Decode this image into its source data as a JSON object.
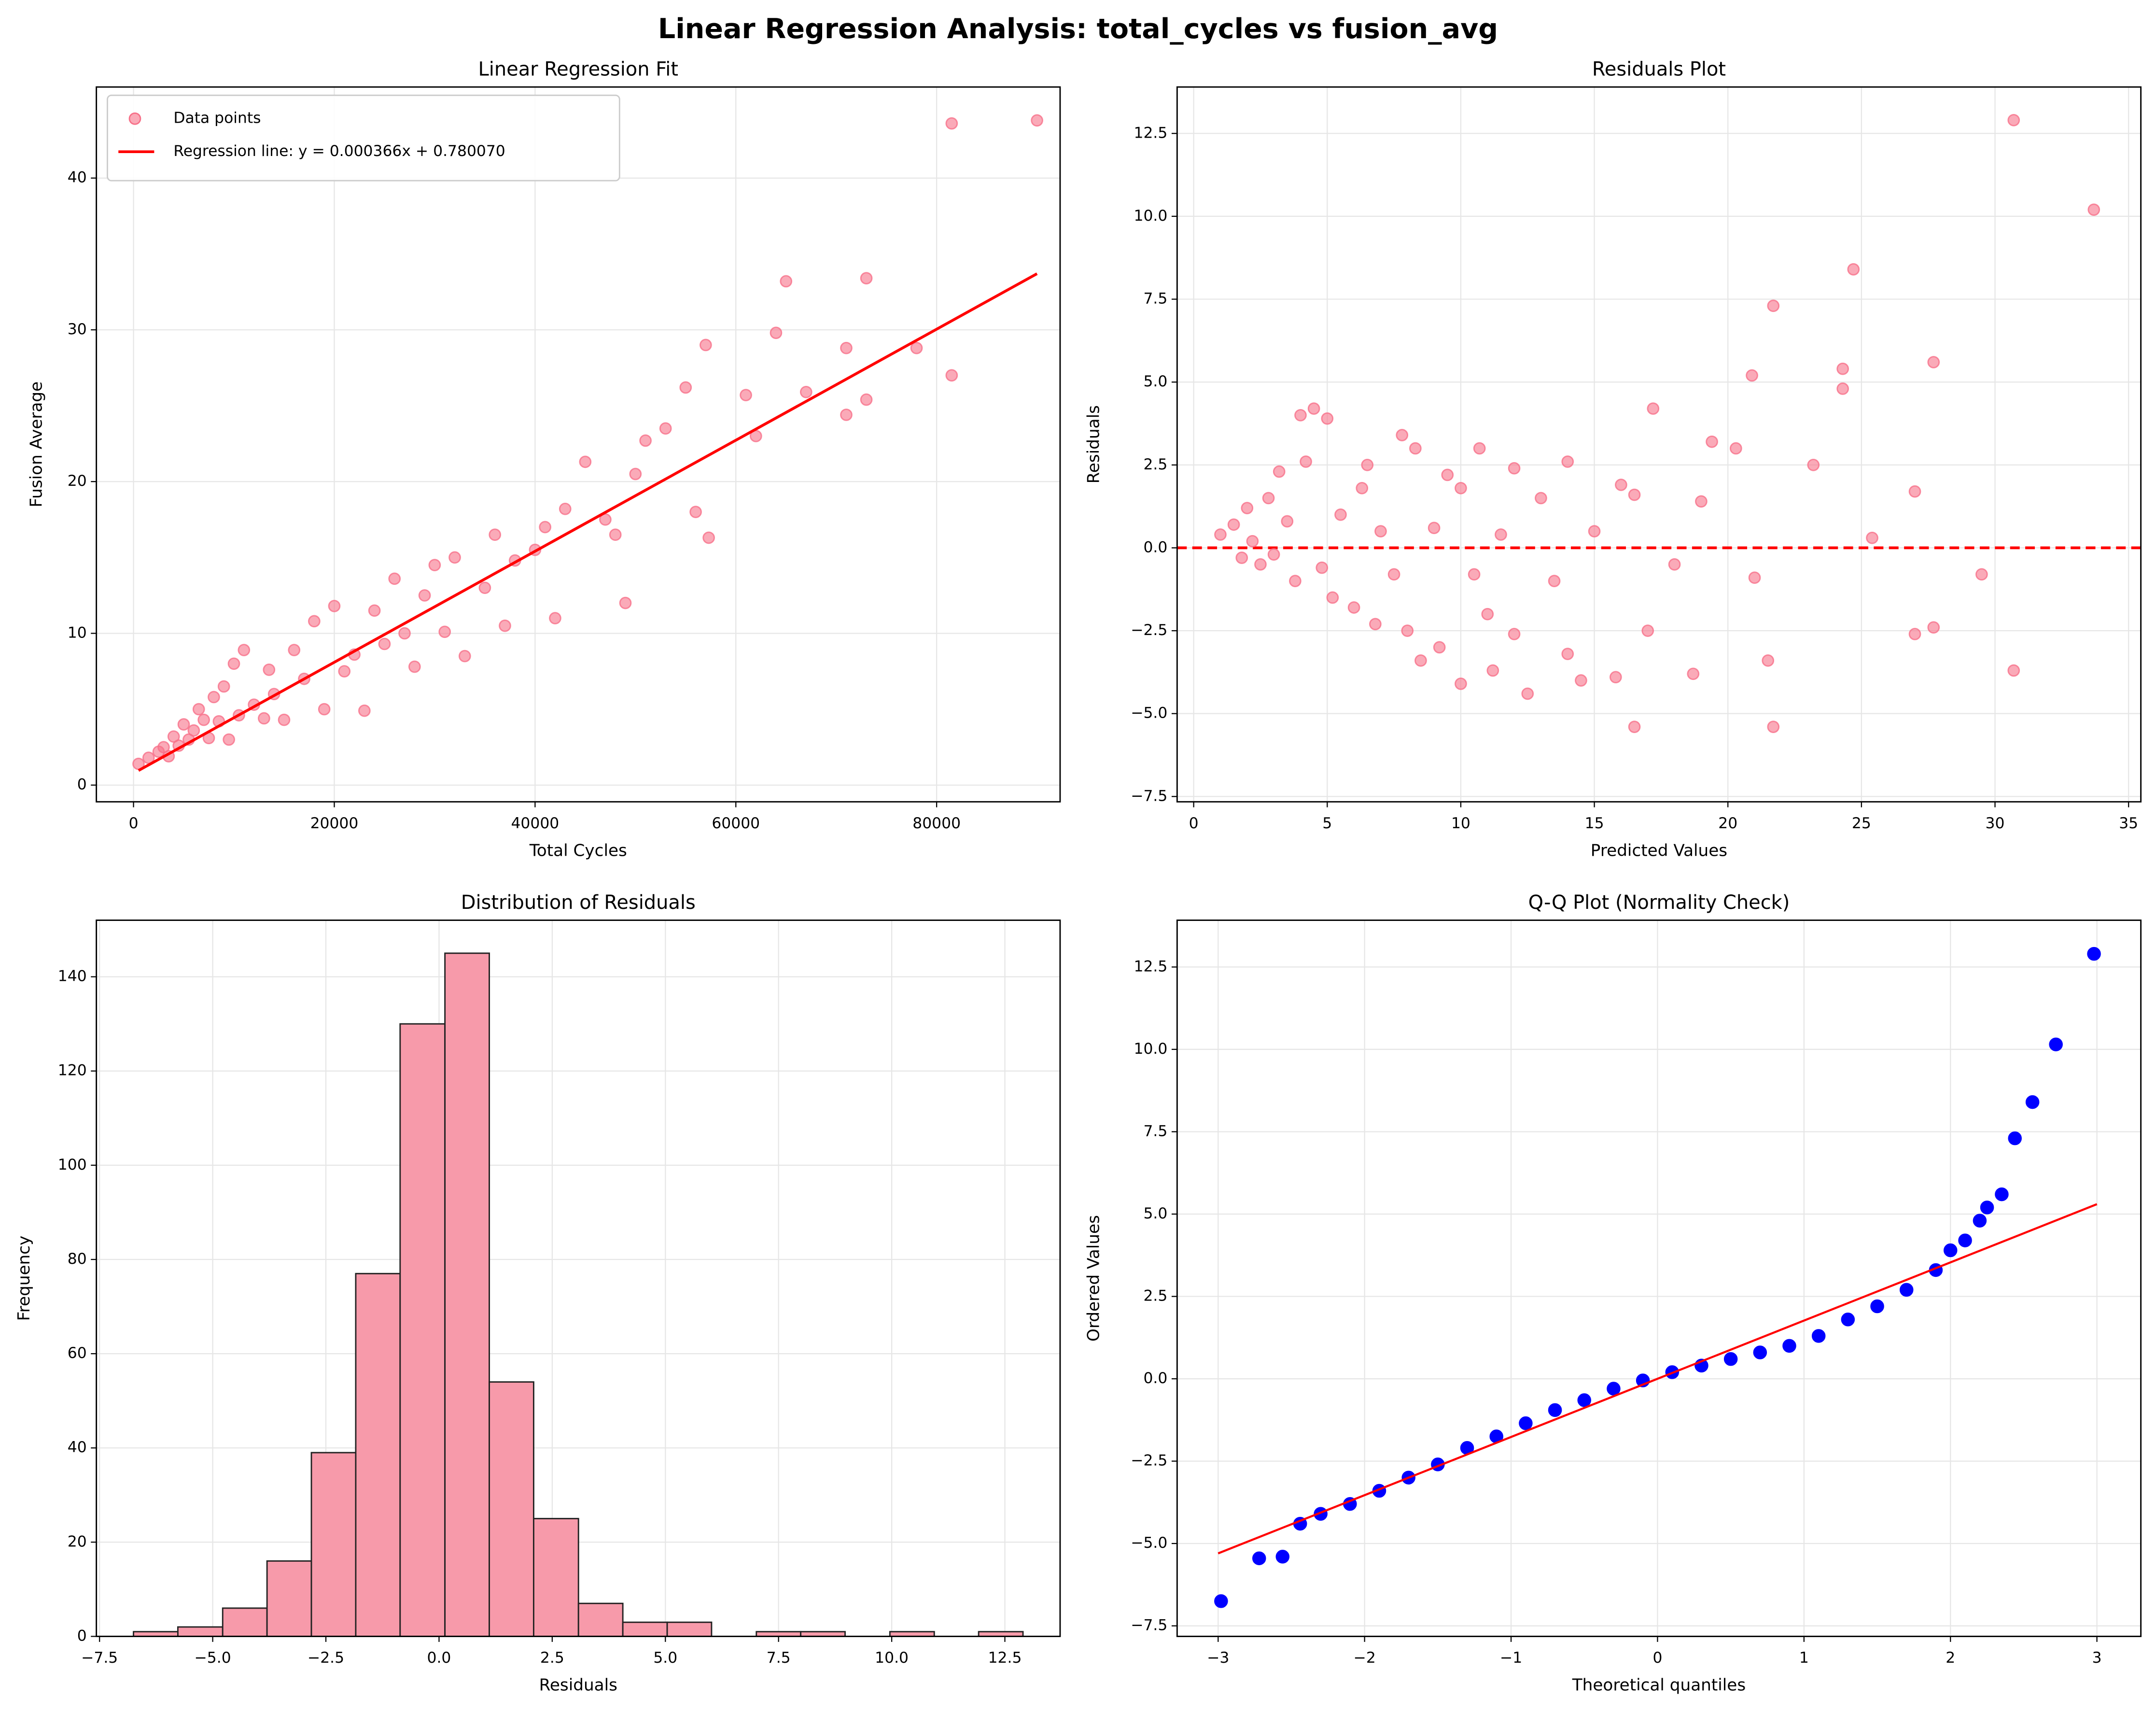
{
  "title": "Linear Regression Analysis: total_cycles vs fusion_avg",
  "chart_data": [
    {
      "type": "scatter",
      "title": "Linear Regression Fit",
      "x_label": "Total Cycles",
      "y_label": "Fusion Average",
      "xlim": [
        -3700,
        92300
      ],
      "ylim": [
        -1.1,
        46
      ],
      "xticks": [
        0,
        20000,
        40000,
        60000,
        80000
      ],
      "yticks": [
        0,
        10,
        20,
        30,
        40
      ],
      "grid": true,
      "legend": "upper left",
      "series": [
        {
          "name": "Data points",
          "type": "scatter",
          "color": "#f77189",
          "x": [
            500,
            1500,
            2500,
            3000,
            3500,
            4000,
            4500,
            5000,
            5500,
            6000,
            6500,
            7000,
            7500,
            8000,
            8500,
            9000,
            9500,
            10000,
            10500,
            11000,
            12000,
            13000,
            13500,
            14000,
            15000,
            16000,
            17000,
            18000,
            19000,
            20000,
            21000,
            22000,
            23000,
            24000,
            25000,
            26000,
            27000,
            28000,
            29000,
            30000,
            31000,
            32000,
            33000,
            35000,
            36000,
            37000,
            38000,
            40000,
            41000,
            42000,
            43000,
            45000,
            47000,
            48000,
            49000,
            50000,
            51000,
            53000,
            55000,
            56000,
            57000,
            57300,
            61000,
            62000,
            64000,
            65000,
            67000,
            71000,
            71000,
            73000,
            73000,
            78000,
            81500,
            81500,
            90000
          ],
          "y": [
            1.4,
            1.8,
            2.2,
            2.5,
            1.9,
            3.2,
            2.6,
            4.0,
            3.0,
            3.6,
            5.0,
            4.3,
            3.1,
            5.8,
            4.2,
            6.5,
            3.0,
            8.0,
            4.6,
            8.9,
            5.3,
            4.4,
            7.6,
            6.0,
            4.3,
            8.9,
            7.0,
            10.8,
            5.0,
            11.8,
            7.5,
            8.6,
            4.9,
            11.5,
            9.3,
            13.6,
            10.0,
            7.8,
            12.5,
            14.5,
            10.1,
            15.0,
            8.5,
            13.0,
            16.5,
            10.5,
            14.8,
            15.5,
            17.0,
            11.0,
            18.2,
            21.3,
            17.5,
            16.5,
            12.0,
            20.5,
            22.7,
            23.5,
            26.2,
            18.0,
            29.0,
            16.3,
            25.7,
            23.0,
            29.8,
            33.2,
            25.9,
            28.8,
            24.4,
            33.4,
            25.4,
            28.8,
            27.0,
            43.6,
            43.8
          ]
        },
        {
          "name": "Regression line: y = 0.000366x + 0.780070",
          "type": "line",
          "color": "#ff0000",
          "x": [
            500,
            90000
          ],
          "y": [
            0.96,
            33.7
          ]
        }
      ]
    },
    {
      "type": "scatter",
      "title": "Residuals Plot",
      "x_label": "Predicted Values",
      "y_label": "Residuals",
      "xlim": [
        -0.62,
        35.46
      ],
      "ylim": [
        -7.66,
        13.9
      ],
      "xticks": [
        0,
        5,
        10,
        15,
        20,
        25,
        30,
        35
      ],
      "yticks": [
        {
          "value": -7.5,
          "label": "−7.5"
        },
        {
          "value": -5,
          "label": "−5.0"
        },
        {
          "value": -2.5,
          "label": "−2.5"
        },
        {
          "value": 0,
          "label": "0.0"
        },
        2.5,
        {
          "value": 5,
          "label": "5.0"
        },
        7.5,
        {
          "value": 10,
          "label": "10.0"
        },
        12.5
      ],
      "grid": true,
      "hline": {
        "value": 0,
        "color": "#ff0000"
      },
      "series": [
        {
          "type": "scatter",
          "color": "#f77189",
          "x": [
            1,
            1.5,
            1.8,
            2,
            2.2,
            2.5,
            2.8,
            3,
            3.2,
            3.5,
            3.8,
            4,
            4.2,
            4.5,
            4.8,
            5,
            5.2,
            5.5,
            6,
            6.3,
            6.5,
            6.8,
            7,
            7.5,
            7.8,
            8,
            8.3,
            8.5,
            9,
            9.2,
            9.5,
            10,
            10,
            10.5,
            10.7,
            11,
            11.2,
            11.5,
            12,
            12,
            12.5,
            13,
            13.5,
            14,
            14,
            14.5,
            15,
            15.8,
            16,
            16.5,
            16.5,
            17,
            17.2,
            18,
            18.7,
            19,
            19.4,
            20.3,
            20.9,
            21,
            21.7,
            21.7,
            21.5,
            23.2,
            24.3,
            24.3,
            24.7,
            25.4,
            27,
            27,
            27.7,
            27.7,
            29.5,
            30.7,
            30.7,
            33.7
          ],
          "y": [
            0.4,
            0.7,
            -0.3,
            1.2,
            0.2,
            -0.5,
            1.5,
            -0.2,
            2.3,
            0.8,
            -1,
            4.0,
            2.6,
            4.2,
            -0.6,
            3.9,
            -1.5,
            1.0,
            -1.8,
            1.8,
            2.5,
            -2.3,
            0.5,
            -0.8,
            3.4,
            -2.5,
            3.0,
            -3.4,
            0.6,
            -3.0,
            2.2,
            -4.1,
            1.8,
            -0.8,
            3.0,
            -2.0,
            -3.7,
            0.4,
            2.4,
            -2.6,
            -4.4,
            1.5,
            -1.0,
            2.6,
            -3.2,
            -4.0,
            0.5,
            -3.9,
            1.9,
            -5.4,
            1.6,
            -2.5,
            4.2,
            -0.5,
            -3.8,
            1.4,
            3.2,
            3.0,
            5.2,
            -0.9,
            7.3,
            -5.4,
            -3.4,
            2.5,
            5.4,
            4.8,
            8.4,
            0.3,
            1.7,
            -2.6,
            5.6,
            -2.4,
            -0.8,
            12.9,
            -3.7,
            10.2
          ]
        }
      ]
    },
    {
      "type": "histogram",
      "title": "Distribution of Residuals",
      "x_label": "Residuals",
      "y_label": "Frequency",
      "xlim": [
        -7.57,
        13.72
      ],
      "ylim": [
        0,
        152
      ],
      "xticks": [
        {
          "value": -7.5,
          "label": "−7.5"
        },
        {
          "value": -5,
          "label": "−5.0"
        },
        {
          "value": -2.5,
          "label": "−2.5"
        },
        {
          "value": 0,
          "label": "0.0"
        },
        2.5,
        {
          "value": 5,
          "label": "5.0"
        },
        7.5,
        {
          "value": 10,
          "label": "10.0"
        },
        12.5
      ],
      "yticks": [
        0,
        20,
        40,
        60,
        80,
        100,
        120,
        140
      ],
      "grid": true,
      "color": "#f79aaa",
      "edgecolor": "#222222",
      "bins": [
        -6.75,
        -5.77,
        -4.78,
        -3.8,
        -2.82,
        -1.84,
        -0.86,
        0.13,
        1.11,
        2.09,
        3.08,
        4.06,
        5.04,
        6.02,
        7.01,
        7.99,
        8.97,
        9.96,
        10.94,
        11.92,
        12.9
      ],
      "counts": [
        1,
        2,
        6,
        16,
        39,
        77,
        130,
        145,
        54,
        25,
        7,
        3,
        3,
        0,
        1,
        1,
        0,
        1,
        0,
        1
      ]
    },
    {
      "type": "scatter",
      "title": "Q-Q Plot (Normality Check)",
      "x_label": "Theoretical quantiles",
      "y_label": "Ordered Values",
      "xlim": [
        -3.28,
        3.3
      ],
      "ylim": [
        -7.82,
        13.92
      ],
      "xticks": [
        {
          "value": -3,
          "label": "−3"
        },
        {
          "value": -2,
          "label": "−2"
        },
        {
          "value": -1,
          "label": "−1"
        },
        0,
        1,
        2,
        3
      ],
      "yticks": [
        {
          "value": -7.5,
          "label": "−7.5"
        },
        {
          "value": -5,
          "label": "−5.0"
        },
        {
          "value": -2.5,
          "label": "−2.5"
        },
        {
          "value": 0,
          "label": "0.0"
        },
        2.5,
        {
          "value": 5,
          "label": "5.0"
        },
        7.5,
        {
          "value": 10,
          "label": "10.0"
        },
        12.5
      ],
      "grid": true,
      "series": [
        {
          "type": "scatter",
          "color": "#0000ff",
          "x": [
            -2.98,
            -2.72,
            -2.56,
            -2.44,
            -2.3,
            -2.1,
            -1.9,
            -1.7,
            -1.5,
            -1.3,
            -1.1,
            -0.9,
            -0.7,
            -0.5,
            -0.3,
            -0.1,
            0.1,
            0.3,
            0.5,
            0.7,
            0.9,
            1.1,
            1.3,
            1.5,
            1.7,
            1.9,
            2.0,
            2.1,
            2.2,
            2.25,
            2.35,
            2.44,
            2.56,
            2.72,
            2.98
          ],
          "y": [
            -6.75,
            -5.45,
            -5.4,
            -4.4,
            -4.1,
            -3.8,
            -3.4,
            -3.0,
            -2.6,
            -2.1,
            -1.75,
            -1.35,
            -0.95,
            -0.65,
            -0.3,
            -0.05,
            0.2,
            0.4,
            0.6,
            0.8,
            1.0,
            1.3,
            1.8,
            2.2,
            2.7,
            3.3,
            3.9,
            4.2,
            4.8,
            5.2,
            5.6,
            7.3,
            8.4,
            10.15,
            12.9
          ]
        },
        {
          "type": "line",
          "color": "#ff0000",
          "x": [
            -3,
            3
          ],
          "y": [
            -5.3,
            5.3
          ]
        }
      ]
    }
  ]
}
